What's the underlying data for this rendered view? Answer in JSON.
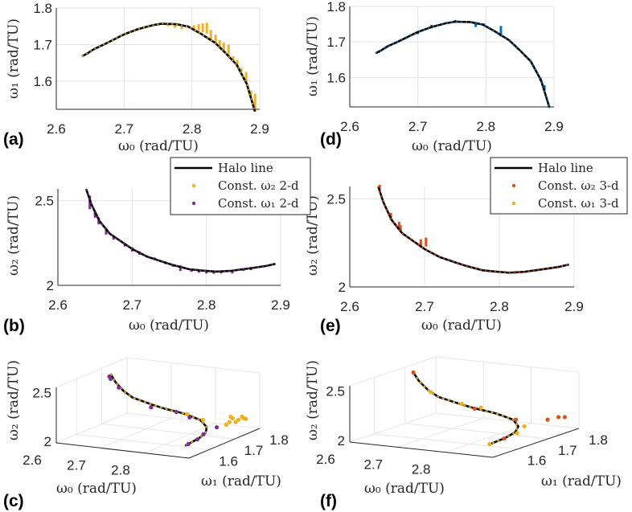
{
  "chart_data": {
    "type": "line",
    "halo_line": {
      "name": "Halo line",
      "w0": [
        2.638,
        2.645,
        2.656,
        2.67,
        2.7,
        2.72,
        2.742,
        2.755,
        2.777,
        2.795,
        2.813,
        2.834,
        2.849,
        2.866,
        2.881,
        2.893
      ],
      "w1": [
        1.668,
        1.675,
        1.688,
        1.7,
        1.728,
        1.742,
        1.753,
        1.757,
        1.756,
        1.749,
        1.73,
        1.705,
        1.678,
        1.645,
        1.592,
        1.517
      ],
      "w2": [
        2.57,
        2.48,
        2.38,
        2.305,
        2.215,
        2.17,
        2.138,
        2.12,
        2.095,
        2.087,
        2.081,
        2.086,
        2.095,
        2.105,
        2.115,
        2.127
      ]
    },
    "colors": {
      "halo": "#000000",
      "yellow": "#EDB120",
      "purple": "#7E2F8E",
      "orange": "#D95319",
      "blue": "#0072BD"
    },
    "panels": [
      {
        "id": "a",
        "panel_label": "(a)",
        "kind": "2d",
        "x": "w0",
        "y": "w1",
        "xlabel": "ω₀ (rad/TU)",
        "ylabel": "ω₁ (rad/TU)",
        "xlim": [
          2.6,
          2.9
        ],
        "ylim": [
          1.523,
          1.8
        ],
        "xticks": [
          2.6,
          2.7,
          2.8,
          2.9
        ],
        "yticks": [
          1.6,
          1.7,
          1.8
        ],
        "grid": true,
        "series": [
          {
            "name": "Const. ω₂ 2-d",
            "color": "yellow",
            "ranges": [
              [
                2.72,
                1.738,
                1.745
              ],
              [
                2.74,
                1.748,
                1.752
              ],
              [
                2.765,
                1.75,
                1.757
              ],
              [
                2.775,
                1.746,
                1.757
              ],
              [
                2.785,
                1.742,
                1.752
              ],
              [
                2.803,
                1.743,
                1.753
              ],
              [
                2.81,
                1.738,
                1.756
              ],
              [
                2.816,
                1.734,
                1.758
              ],
              [
                2.822,
                1.73,
                1.76
              ],
              [
                2.828,
                1.715,
                1.74
              ],
              [
                2.835,
                1.703,
                1.727
              ],
              [
                2.841,
                1.692,
                1.712
              ],
              [
                2.847,
                1.682,
                1.705
              ],
              [
                2.854,
                1.668,
                1.7
              ],
              [
                2.861,
                1.655,
                1.668
              ],
              [
                2.867,
                1.642,
                1.658
              ],
              [
                2.873,
                1.625,
                1.636
              ],
              [
                2.88,
                1.596,
                1.625
              ],
              [
                2.887,
                1.56,
                1.574
              ],
              [
                2.893,
                1.517,
                1.566
              ]
            ]
          }
        ]
      },
      {
        "id": "d",
        "panel_label": "(d)",
        "kind": "2d",
        "x": "w0",
        "y": "w1",
        "xlabel": "ω₀ (rad/TU)",
        "ylabel": "ω₁ (rad/TU)",
        "xlim": [
          2.6,
          2.9
        ],
        "ylim": [
          1.517,
          1.8
        ],
        "xticks": [
          2.6,
          2.7,
          2.8,
          2.9
        ],
        "yticks": [
          1.6,
          1.7,
          1.8
        ],
        "grid": true,
        "series": [
          {
            "name": "Const. ω₂ 3-d (blue)",
            "color": "blue",
            "ranges": [
              [
                2.7,
                1.722,
                1.73
              ],
              [
                2.72,
                1.738,
                1.748
              ],
              [
                2.755,
                1.755,
                1.762
              ],
              [
                2.785,
                1.742,
                1.756
              ],
              [
                2.797,
                1.745,
                1.752
              ],
              [
                2.822,
                1.715,
                1.745
              ],
              [
                2.88,
                1.59,
                1.6
              ],
              [
                2.886,
                1.565,
                1.578
              ],
              [
                2.893,
                1.514,
                1.52
              ]
            ]
          }
        ]
      },
      {
        "id": "b",
        "panel_label": "(b)",
        "kind": "2d",
        "x": "w0",
        "y": "w2",
        "xlabel": "ω₀ (rad/TU)",
        "ylabel": "ω₂ (rad/TU)",
        "xlim": [
          2.6,
          2.9
        ],
        "ylim": [
          2.0,
          2.57
        ],
        "xticks": [
          2.6,
          2.7,
          2.8,
          2.9
        ],
        "yticks": [
          2,
          2.5
        ],
        "grid": true,
        "series": [
          {
            "name": "Const. ω₁ 2-d",
            "color": "purple",
            "ranges": [
              [
                2.643,
                2.45,
                2.53
              ],
              [
                2.65,
                2.4,
                2.44
              ],
              [
                2.655,
                2.36,
                2.4
              ],
              [
                2.665,
                2.3,
                2.34
              ],
              [
                2.675,
                2.27,
                2.29
              ],
              [
                2.69,
                2.23,
                2.25
              ],
              [
                2.7,
                2.2,
                2.225
              ],
              [
                2.71,
                2.18,
                2.2
              ],
              [
                2.73,
                2.15,
                2.165
              ],
              [
                2.745,
                2.125,
                2.14
              ],
              [
                2.755,
                2.11,
                2.125
              ],
              [
                2.765,
                2.085,
                2.118
              ],
              [
                2.78,
                2.08,
                2.1
              ],
              [
                2.79,
                2.075,
                2.095
              ],
              [
                2.8,
                2.07,
                2.09
              ],
              [
                2.81,
                2.068,
                2.085
              ],
              [
                2.82,
                2.07,
                2.085
              ],
              [
                2.835,
                2.07,
                2.088
              ],
              [
                2.85,
                2.085,
                2.095
              ],
              [
                2.86,
                2.09,
                2.1
              ]
            ]
          }
        ]
      },
      {
        "id": "e",
        "panel_label": "(e)",
        "kind": "2d",
        "x": "w0",
        "y": "w2",
        "xlabel": "ω₀ (rad/TU)",
        "ylabel": "ω₂ (rad/TU)",
        "xlim": [
          2.6,
          2.9
        ],
        "ylim": [
          2.0,
          2.57
        ],
        "xticks": [
          2.6,
          2.7,
          2.8,
          2.9
        ],
        "yticks": [
          2,
          2.5
        ],
        "grid": true,
        "series": [
          {
            "name": "Const. ω₂ 3-d",
            "color": "orange",
            "ranges": [
              [
                2.64,
                2.55,
                2.58
              ],
              [
                2.655,
                2.38,
                2.42
              ],
              [
                2.666,
                2.33,
                2.37
              ],
              [
                2.668,
                2.31,
                2.35
              ],
              [
                2.695,
                2.23,
                2.27
              ],
              [
                2.702,
                2.23,
                2.28
              ],
              [
                2.82,
                2.075,
                2.085
              ]
            ]
          }
        ]
      },
      {
        "id": "c",
        "panel_label": "(c)",
        "kind": "3d",
        "xlabel": "ω₀ (rad/TU)",
        "ylabel": "ω₁ (rad/TU)",
        "zlabel": "ω₂ (rad/TU)",
        "xlim": [
          2.6,
          2.9
        ],
        "ylim": [
          1.52,
          1.8
        ],
        "zlim": [
          2.0,
          2.57
        ],
        "xticks": [
          2.6,
          2.7,
          2.8
        ],
        "yticks": [
          1.6,
          1.7,
          1.8
        ],
        "zticks": [
          2,
          2.5
        ],
        "dash_color": "yellow",
        "series": [
          {
            "name": "Const. ω₂ 2-d",
            "color": "yellow",
            "points": [
              [
                2.86,
                1.8,
                2.1
              ],
              [
                2.87,
                1.79,
                2.1
              ],
              [
                2.88,
                1.78,
                2.11
              ],
              [
                2.875,
                1.76,
                2.12
              ],
              [
                2.88,
                1.74,
                2.12
              ],
              [
                2.87,
                1.72,
                2.11
              ],
              [
                2.86,
                1.75,
                2.1
              ],
              [
                2.85,
                1.78,
                2.1
              ],
              [
                2.84,
                1.79,
                2.1
              ],
              [
                2.8,
                1.75,
                2.09
              ],
              [
                2.76,
                1.757,
                2.12
              ]
            ]
          },
          {
            "name": "Const. ω₁ 2-d",
            "color": "purple",
            "points": [
              [
                2.64,
                1.66,
                2.55
              ],
              [
                2.64,
                1.665,
                2.52
              ],
              [
                2.65,
                1.68,
                2.42
              ],
              [
                2.7,
                1.72,
                2.2
              ],
              [
                2.74,
                1.75,
                2.14
              ],
              [
                2.77,
                1.75,
                2.1
              ],
              [
                2.87,
                1.63,
                2.11
              ],
              [
                2.885,
                1.58,
                2.12
              ],
              [
                2.893,
                1.53,
                2.13
              ],
              [
                2.86,
                1.7,
                2.1
              ]
            ]
          }
        ]
      },
      {
        "id": "f",
        "panel_label": "(f)",
        "kind": "3d",
        "xlabel": "ω₀ (rad/TU)",
        "ylabel": "ω₁ (rad/TU)",
        "zlabel": "ω₂ (rad/TU)",
        "xlim": [
          2.6,
          2.9
        ],
        "ylim": [
          1.52,
          1.8
        ],
        "zlim": [
          2.0,
          2.57
        ],
        "xticks": [
          2.6,
          2.7,
          2.8
        ],
        "yticks": [
          1.6,
          1.7,
          1.8
        ],
        "zticks": [
          2,
          2.5
        ],
        "dash_color": "yellow",
        "series": [
          {
            "name": "Const. ω₂ 3-d",
            "color": "orange",
            "points": [
              [
                2.638,
                1.668,
                2.57
              ],
              [
                2.87,
                1.78,
                2.12
              ],
              [
                2.88,
                1.785,
                2.12
              ],
              [
                2.86,
                1.76,
                2.11
              ],
              [
                2.72,
                1.74,
                2.17
              ],
              [
                2.8,
                1.75,
                2.09
              ],
              [
                2.885,
                1.58,
                2.12
              ]
            ]
          },
          {
            "name": "Const. ω₁ 3-d",
            "color": "yellow",
            "points": [
              [
                2.7,
                1.73,
                2.22
              ],
              [
                2.73,
                1.745,
                2.18
              ],
              [
                2.85,
                1.7,
                2.1
              ],
              [
                2.88,
                1.63,
                2.12
              ],
              [
                2.66,
                1.69,
                2.36
              ],
              [
                2.893,
                1.52,
                2.13
              ]
            ]
          }
        ]
      }
    ],
    "legends": [
      {
        "items": [
          {
            "label": "Halo line",
            "kind": "line",
            "color": "halo"
          },
          {
            "label": "Const. ω₂ 2-d",
            "kind": "dot",
            "color": "yellow"
          },
          {
            "label": "Const. ω₁ 2-d",
            "kind": "dot",
            "color": "purple"
          }
        ]
      },
      {
        "items": [
          {
            "label": "Halo line",
            "kind": "line",
            "color": "halo"
          },
          {
            "label": "Const. ω₂ 3-d",
            "kind": "dot",
            "color": "orange"
          },
          {
            "label": "Const. ω₁ 3-d",
            "kind": "dot",
            "color": "yellow"
          }
        ]
      }
    ]
  }
}
